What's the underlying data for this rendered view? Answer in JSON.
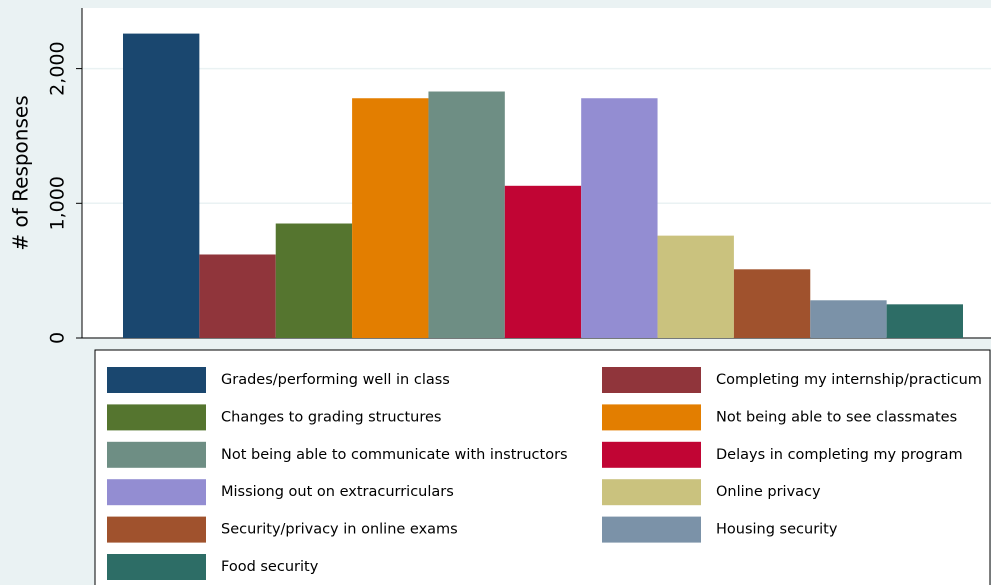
{
  "chart_data": {
    "type": "bar",
    "ylabel": "# of Responses",
    "categories": [
      "Grades/performing well in class",
      "Completing my internship/practicum",
      "Changes to grading structures",
      "Not being able to see classmates",
      "Not being able to communicate with instructors",
      "Delays in completing my program",
      "Missiong out on extracurriculars",
      "Online privacy",
      "Security/privacy in online exams",
      "Housing security",
      "Food security"
    ],
    "values": [
      2260,
      620,
      850,
      1780,
      1830,
      1130,
      1780,
      760,
      510,
      280,
      250
    ],
    "colors": [
      "#1a476f",
      "#90353b",
      "#55752f",
      "#e37e00",
      "#6e8e84",
      "#c10534",
      "#938dd2",
      "#cac27e",
      "#a0522d",
      "#7b92a8",
      "#2d6d66"
    ],
    "ylim": [
      0,
      2450
    ],
    "yticks": [
      0,
      {
        "value": 1000,
        "label": "1,000"
      },
      {
        "value": 2000,
        "label": "2,000"
      }
    ],
    "grid": true
  }
}
